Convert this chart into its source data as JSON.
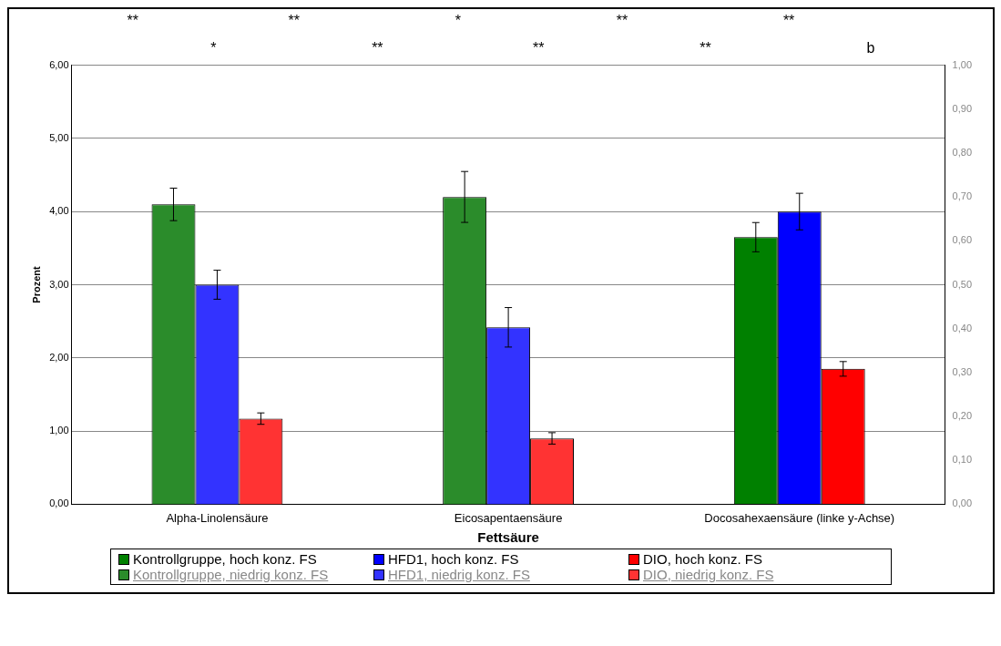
{
  "chart_data": {
    "type": "bar",
    "xlabel": "Fettsäure",
    "ylabel": "Prozent",
    "categories": [
      "Alpha-Linolensäure",
      "Eicosapentaensäure",
      "Docosahexaensäure (linke y-Achse)"
    ],
    "series": [
      {
        "name": "Kontrollgruppe, hoch konz. FS",
        "color": "#008000",
        "values": [
          null,
          null,
          3.65
        ],
        "errors": [
          null,
          null,
          0.2
        ]
      },
      {
        "name": "HFD1, hoch konz. FS",
        "color": "#0000ff",
        "values": [
          null,
          null,
          4.0
        ],
        "errors": [
          null,
          null,
          0.25
        ]
      },
      {
        "name": "DIO, hoch konz. FS",
        "color": "#ff0000",
        "values": [
          null,
          null,
          1.85
        ],
        "errors": [
          null,
          null,
          0.1
        ]
      },
      {
        "name": "Kontrollgruppe, niedrig konz. FS",
        "color": "#2b8c2b",
        "axis": "y2",
        "values": [
          0.683,
          0.7,
          null
        ],
        "errors": [
          0.037,
          0.058,
          null
        ]
      },
      {
        "name": "HFD1, niedrig konz. FS",
        "color": "#3333ff",
        "axis": "y2",
        "values": [
          0.5,
          0.403,
          null
        ],
        "errors": [
          0.033,
          0.045,
          null
        ]
      },
      {
        "name": "DIO, niedrig konz. FS",
        "color": "#ff3333",
        "axis": "y2",
        "values": [
          0.195,
          0.15,
          null
        ],
        "errors": [
          0.013,
          0.013,
          null
        ]
      }
    ],
    "ylim": [
      0,
      6
    ],
    "yticks": [
      {
        "value": 0,
        "label": "0,00"
      },
      {
        "value": 1,
        "label": "1,00"
      },
      {
        "value": 2,
        "label": "2,00"
      },
      {
        "value": 3,
        "label": "3,00"
      },
      {
        "value": 4,
        "label": "4,00"
      },
      {
        "value": 5,
        "label": "5,00"
      },
      {
        "value": 6,
        "label": "6,00"
      }
    ],
    "y2lim": [
      0,
      1
    ],
    "y2ticks": [
      {
        "value": 0,
        "label": "0,00"
      },
      {
        "value": 0.1,
        "label": "0,10"
      },
      {
        "value": 0.2,
        "label": "0,20"
      },
      {
        "value": 0.3,
        "label": "0,30"
      },
      {
        "value": 0.4,
        "label": "0,40"
      },
      {
        "value": 0.5,
        "label": "0,50"
      },
      {
        "value": 0.6,
        "label": "0,60"
      },
      {
        "value": 0.7,
        "label": "0,70"
      },
      {
        "value": 0.8,
        "label": "0,80"
      },
      {
        "value": 0.9,
        "label": "0,90"
      },
      {
        "value": 1,
        "label": "1,00"
      }
    ],
    "grid": "y",
    "legend": "bottom",
    "annotations": [
      "**",
      "*",
      "**",
      "**",
      "*",
      "**",
      "**",
      "**",
      "**",
      "b"
    ]
  }
}
